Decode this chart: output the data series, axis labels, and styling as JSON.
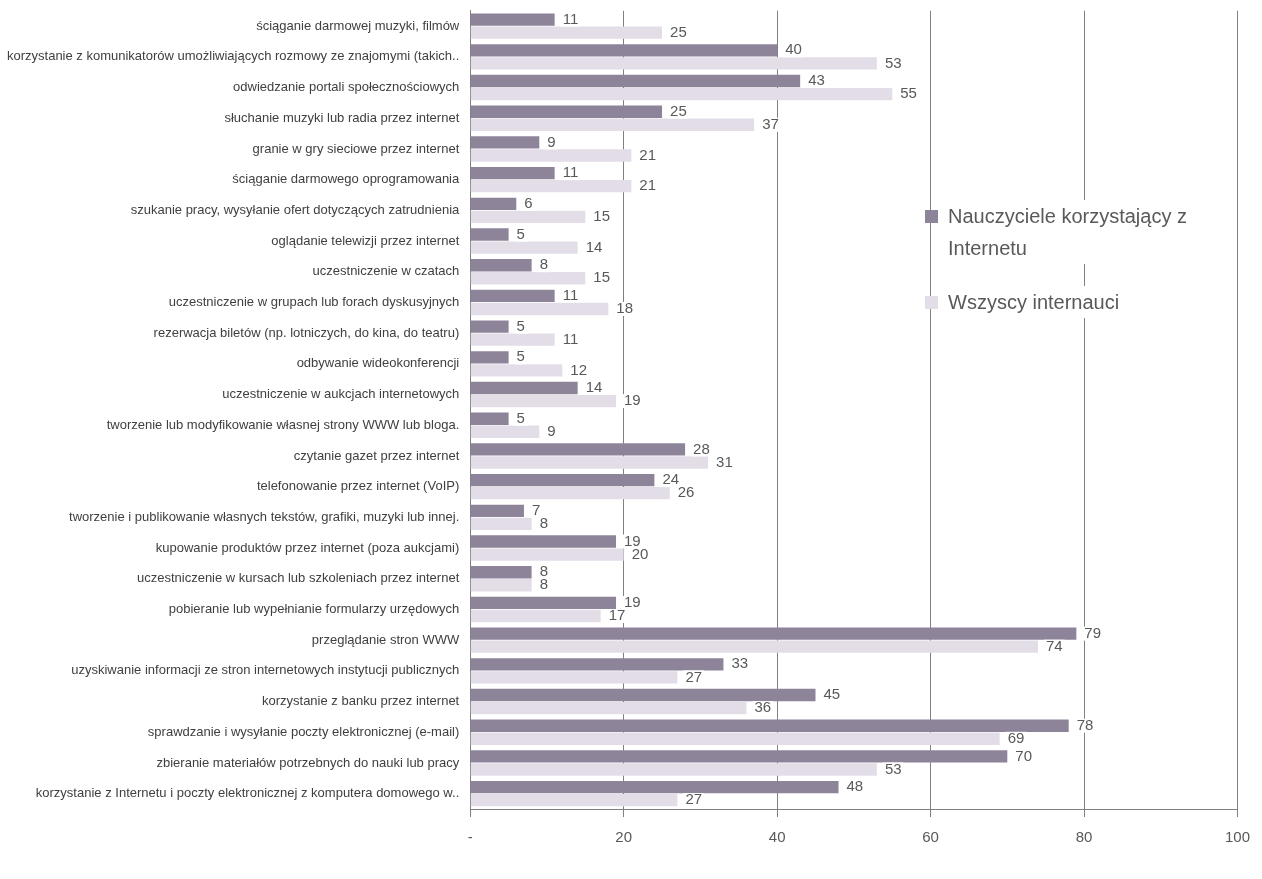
{
  "chart_data": {
    "type": "bar",
    "orientation": "horizontal",
    "categories": [
      "ściąganie darmowej muzyki, filmów",
      "korzystanie z komunikatorów umożliwiających rozmowy ze znajomymi (takich..",
      "odwiedzanie portali społecznościowych",
      "słuchanie muzyki lub radia przez internet",
      "granie w gry sieciowe przez internet",
      "ściąganie darmowego oprogramowania",
      "szukanie pracy, wysyłanie ofert dotyczących zatrudnienia",
      "oglądanie telewizji przez internet",
      "uczestniczenie w czatach",
      "uczestniczenie w grupach lub forach dyskusyjnych",
      "rezerwacja biletów (np. lotniczych, do kina, do teatru)",
      "odbywanie wideokonferencji",
      "uczestniczenie w aukcjach internetowych",
      "tworzenie lub modyfikowanie własnej strony WWW lub bloga.",
      "czytanie gazet przez internet",
      "telefonowanie przez internet (VoIP)",
      "tworzenie i publikowanie własnych tekstów, grafiki, muzyki lub innej.",
      "kupowanie produktów przez internet (poza aukcjami)",
      "uczestniczenie w kursach lub szkoleniach przez internet",
      "pobieranie lub wypełnianie formularzy urzędowych",
      "przeglądanie stron WWW",
      "uzyskiwanie informacji ze stron internetowych instytucji publicznych",
      "korzystanie z banku przez internet",
      "sprawdzanie i wysyłanie poczty elektronicznej (e-mail)",
      "zbieranie materiałów potrzebnych do nauki lub pracy",
      "korzystanie z Internetu i poczty elektronicznej z komputera domowego w.."
    ],
    "series": [
      {
        "name": "Nauczyciele korzystający z Internetu",
        "color": "#8e8499",
        "values": [
          11,
          40,
          43,
          25,
          9,
          11,
          6,
          5,
          8,
          11,
          5,
          5,
          14,
          5,
          28,
          24,
          7,
          19,
          8,
          19,
          79,
          33,
          45,
          78,
          70,
          48
        ]
      },
      {
        "name": "Wszyscy internauci",
        "color": "#e3dde8",
        "values": [
          25,
          53,
          55,
          37,
          21,
          21,
          15,
          14,
          15,
          18,
          11,
          12,
          19,
          9,
          31,
          26,
          8,
          20,
          8,
          17,
          74,
          27,
          36,
          69,
          53,
          27
        ]
      }
    ],
    "xlim": [
      0,
      100
    ],
    "xticks": [
      {
        "value": 0,
        "label": "-"
      },
      20,
      40,
      60,
      80,
      100
    ],
    "grid": "x",
    "legend": "right",
    "data_labels": true
  }
}
